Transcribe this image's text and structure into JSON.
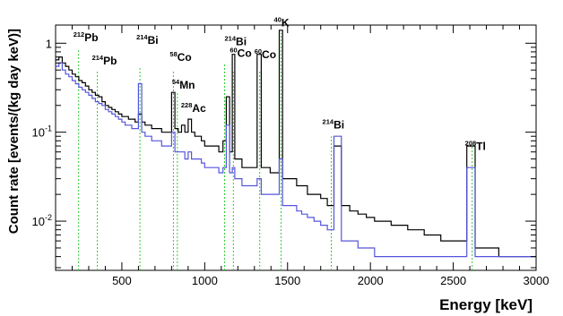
{
  "chart_data": {
    "type": "line",
    "xlabel": "Energy [keV]",
    "ylabel": "Count rate [events/(kg day keV)]",
    "xlim": [
      100,
      3000
    ],
    "ylim": [
      0.0028,
      1.6
    ],
    "y_scale": "log",
    "x_ticks": [
      {
        "value": 500,
        "label": "500"
      },
      {
        "value": 1000,
        "label": "1000"
      },
      {
        "value": 1500,
        "label": "1500"
      },
      {
        "value": 2000,
        "label": "2000"
      },
      {
        "value": 2500,
        "label": "2500"
      },
      {
        "value": 3000,
        "label": "3000"
      }
    ],
    "y_ticks": [
      {
        "value": 0.01,
        "label": "10-2",
        "mantissa": "10",
        "exponent": "-2"
      },
      {
        "value": 0.1,
        "label": "10-1",
        "mantissa": "10",
        "exponent": "-1"
      },
      {
        "value": 1,
        "label": "1",
        "mantissa": "1",
        "exponent": ""
      }
    ],
    "colors": {
      "black_series": "#000000",
      "blue_series": "#5555dd",
      "marker_lines": "#33cc33"
    },
    "series": [
      {
        "color": "#000000",
        "x": [
          110,
          130,
          150,
          170,
          190,
          210,
          230,
          250,
          270,
          290,
          310,
          330,
          350,
          370,
          390,
          410,
          430,
          450,
          470,
          490,
          510,
          530,
          550,
          570,
          590,
          610,
          630,
          650,
          670,
          690,
          710,
          730,
          750,
          770,
          790,
          810,
          830,
          850,
          870,
          890,
          910,
          930,
          950,
          970,
          990,
          1010,
          1040,
          1070,
          1100,
          1120,
          1140,
          1160,
          1173,
          1190,
          1210,
          1240,
          1270,
          1300,
          1332,
          1350,
          1380,
          1410,
          1440,
          1460,
          1480,
          1510,
          1540,
          1570,
          1600,
          1640,
          1680,
          1720,
          1760,
          1800,
          1850,
          1900,
          1950,
          2000,
          2050,
          2100,
          2150,
          2200,
          2250,
          2300,
          2350,
          2400,
          2450,
          2500,
          2550,
          2614,
          2650,
          2700,
          2750,
          2800,
          2850,
          2900,
          2950
        ],
        "y": [
          0.65,
          0.7,
          0.6,
          0.55,
          0.5,
          0.45,
          0.42,
          0.38,
          0.36,
          0.33,
          0.3,
          0.28,
          0.26,
          0.25,
          0.22,
          0.2,
          0.19,
          0.18,
          0.17,
          0.16,
          0.15,
          0.15,
          0.14,
          0.14,
          0.13,
          0.16,
          0.13,
          0.12,
          0.12,
          0.11,
          0.11,
          0.11,
          0.1,
          0.1,
          0.1,
          0.28,
          0.11,
          0.1,
          0.12,
          0.1,
          0.14,
          0.1,
          0.09,
          0.09,
          0.08,
          0.07,
          0.07,
          0.07,
          0.06,
          0.08,
          0.25,
          0.06,
          0.75,
          0.05,
          0.05,
          0.04,
          0.04,
          0.04,
          0.75,
          0.04,
          0.04,
          0.035,
          0.035,
          1.4,
          0.03,
          0.03,
          0.03,
          0.025,
          0.025,
          0.02,
          0.02,
          0.018,
          0.015,
          0.07,
          0.015,
          0.013,
          0.012,
          0.011,
          0.01,
          0.01,
          0.009,
          0.009,
          0.008,
          0.008,
          0.007,
          0.007,
          0.006,
          0.006,
          0.006,
          0.07,
          0.005,
          0.005,
          0.005,
          0.004,
          0.004,
          0.004,
          0.004
        ]
      },
      {
        "color": "#5555dd",
        "x": [
          110,
          130,
          150,
          170,
          190,
          210,
          230,
          250,
          270,
          290,
          310,
          330,
          350,
          370,
          390,
          410,
          430,
          450,
          470,
          490,
          510,
          530,
          550,
          570,
          590,
          610,
          630,
          650,
          670,
          690,
          710,
          730,
          750,
          770,
          790,
          810,
          830,
          850,
          870,
          890,
          910,
          930,
          950,
          970,
          990,
          1010,
          1040,
          1070,
          1100,
          1120,
          1140,
          1160,
          1173,
          1190,
          1210,
          1240,
          1270,
          1300,
          1332,
          1350,
          1380,
          1410,
          1440,
          1460,
          1480,
          1510,
          1540,
          1570,
          1600,
          1640,
          1680,
          1720,
          1760,
          1800,
          1850,
          1900,
          1950,
          2000,
          2050,
          2100,
          2150,
          2200,
          2250,
          2300,
          2350,
          2400,
          2450,
          2500,
          2550,
          2614,
          2650,
          2700,
          2750,
          2800,
          2850,
          2900,
          2950
        ],
        "y": [
          0.55,
          0.6,
          0.5,
          0.45,
          0.42,
          0.38,
          0.35,
          0.32,
          0.3,
          0.28,
          0.26,
          0.24,
          0.22,
          0.21,
          0.2,
          0.18,
          0.17,
          0.16,
          0.15,
          0.14,
          0.13,
          0.12,
          0.12,
          0.11,
          0.11,
          0.35,
          0.1,
          0.09,
          0.09,
          0.08,
          0.08,
          0.08,
          0.07,
          0.07,
          0.07,
          0.1,
          0.06,
          0.06,
          0.06,
          0.05,
          0.06,
          0.05,
          0.05,
          0.05,
          0.045,
          0.04,
          0.04,
          0.04,
          0.035,
          0.04,
          0.12,
          0.035,
          0.04,
          0.03,
          0.03,
          0.025,
          0.025,
          0.025,
          0.03,
          0.02,
          0.02,
          0.02,
          0.02,
          0.05,
          0.015,
          0.015,
          0.015,
          0.013,
          0.012,
          0.011,
          0.01,
          0.009,
          0.008,
          0.09,
          0.006,
          0.006,
          0.005,
          0.005,
          0.004,
          0.004,
          0.004,
          0.004,
          0.004,
          0.004,
          0.004,
          0.004,
          0.004,
          0.004,
          0.004,
          0.04,
          0.004,
          0.004,
          0.004,
          0.004,
          0.004,
          0.004,
          0.004
        ]
      }
    ],
    "marker_lines": [
      {
        "energy": 239,
        "y_top": 0.85
      },
      {
        "energy": 352,
        "y_top": 0.5
      },
      {
        "energy": 609,
        "y_top": 0.55
      },
      {
        "energy": 811,
        "y_top": 0.5
      },
      {
        "energy": 835,
        "y_top": 0.28
      },
      {
        "energy": 1120,
        "y_top": 0.6
      },
      {
        "energy": 1173,
        "y_top": 0.5
      },
      {
        "energy": 1332,
        "y_top": 0.5
      },
      {
        "energy": 1461,
        "y_top": 1.3
      },
      {
        "energy": 1764,
        "y_top": 0.09
      },
      {
        "energy": 2614,
        "y_top": 0.07
      }
    ],
    "annotations": [
      {
        "mass": "212",
        "element": "Pb",
        "energy": 239,
        "y": 1.05,
        "dx": -6
      },
      {
        "mass": "214",
        "element": "Pb",
        "energy": 352,
        "y": 0.58,
        "dx": -6
      },
      {
        "mass": "214",
        "element": "Bi",
        "energy": 609,
        "y": 0.98,
        "dx": -4
      },
      {
        "mass": "58",
        "element": "Co",
        "energy": 811,
        "y": 0.63,
        "dx": -4
      },
      {
        "mass": "54",
        "element": "Mn",
        "energy": 835,
        "y": 0.31,
        "dx": -6
      },
      {
        "mass": "228",
        "element": "Ac",
        "energy": 911,
        "y": 0.17,
        "dx": -10
      },
      {
        "mass": "214",
        "element": "Bi",
        "energy": 1120,
        "y": 0.95,
        "dx": 0
      },
      {
        "mass": "60",
        "element": "Co",
        "energy": 1173,
        "y": 0.7,
        "dx": -4
      },
      {
        "mass": "60",
        "element": "Co",
        "energy": 1332,
        "y": 0.68,
        "dx": -6
      },
      {
        "mass": "40",
        "element": "K",
        "energy": 1461,
        "y": 1.55,
        "dx": -8
      },
      {
        "mass": "214",
        "element": "Bi",
        "energy": 1764,
        "y": 0.11,
        "dx": -10
      },
      {
        "mass": "208",
        "element": "Tl",
        "energy": 2614,
        "y": 0.063,
        "dx": -8
      }
    ]
  }
}
